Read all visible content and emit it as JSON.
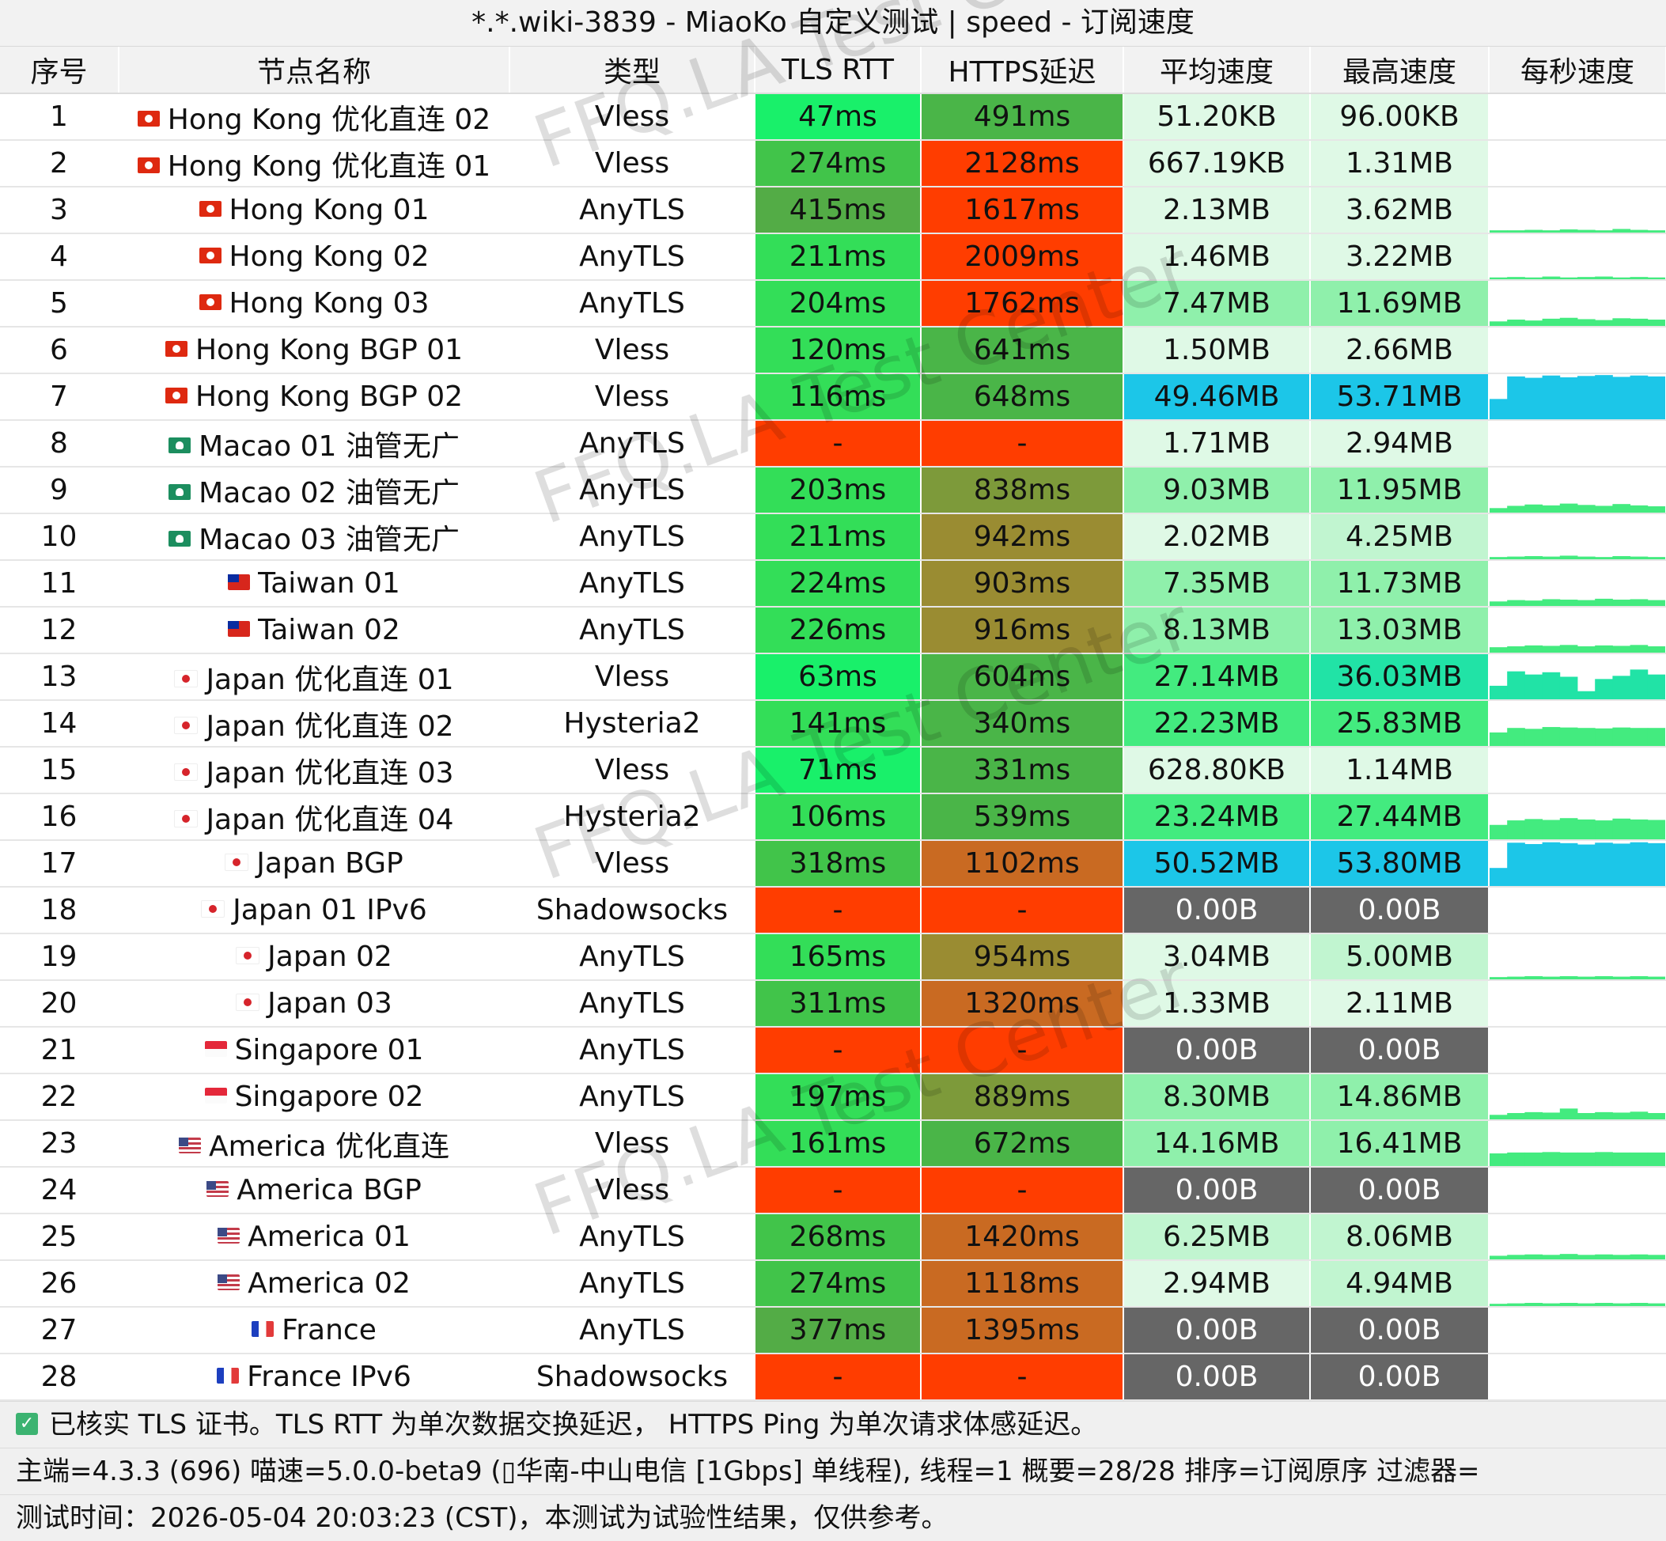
{
  "title": "*.*.wiki-3839 - MiaoKo 自定义测试 | speed - 订阅速度",
  "headers": [
    "序号",
    "节点名称",
    "类型",
    "TLS RTT",
    "HTTPS延迟",
    "平均速度",
    "最高速度",
    "每秒速度"
  ],
  "colors": {
    "tls_fast": "#19f06a",
    "tls_good": "#33de58",
    "tls_ok": "#41c44a",
    "tls_slow": "#53ac46",
    "fail": "#ff3d00",
    "https_good": "#4ab548",
    "https_mid": "#7d9a3a",
    "https_olive": "#9a8c32",
    "https_orange": "#c96a22",
    "https_bad": "#ff3d00",
    "speed_light": "#dff9e6",
    "speed_pale": "#c1f5d0",
    "speed_mid": "#8ff0ab",
    "speed_bright": "#43eb7f",
    "speed_teal": "#21e3a6",
    "speed_cyan": "#1cc6e8",
    "zero": "#666666"
  },
  "rows": [
    {
      "idx": "1",
      "flag": "hk",
      "name": "Hong Kong 优化直连 02",
      "type": "Vless",
      "tls": "47ms",
      "tls_color": "#19f06a",
      "https": "491ms",
      "https_color": "#4ab548",
      "avg": "51.20KB",
      "avg_color": "#dff9e6",
      "max": "96.00KB",
      "max_color": "#dff9e6",
      "spark": []
    },
    {
      "idx": "2",
      "flag": "hk",
      "name": "Hong Kong 优化直连 01",
      "type": "Vless",
      "tls": "274ms",
      "tls_color": "#41c44a",
      "https": "2128ms",
      "https_color": "#ff3d00",
      "avg": "667.19KB",
      "avg_color": "#dff9e6",
      "max": "1.31MB",
      "max_color": "#dff9e6",
      "spark": []
    },
    {
      "idx": "3",
      "flag": "hk",
      "name": "Hong Kong 01",
      "type": "AnyTLS",
      "tls": "415ms",
      "tls_color": "#53ac46",
      "https": "1617ms",
      "https_color": "#ff3d00",
      "avg": "2.13MB",
      "avg_color": "#dff9e6",
      "max": "3.62MB",
      "max_color": "#dff9e6",
      "spark": [
        0.05,
        0.05,
        0.06,
        0.05,
        0.07,
        0.06,
        0.05,
        0.08,
        0.06,
        0.05
      ]
    },
    {
      "idx": "4",
      "flag": "hk",
      "name": "Hong Kong 02",
      "type": "AnyTLS",
      "tls": "211ms",
      "tls_color": "#33de58",
      "https": "2009ms",
      "https_color": "#ff3d00",
      "avg": "1.46MB",
      "avg_color": "#dff9e6",
      "max": "3.22MB",
      "max_color": "#dff9e6",
      "spark": [
        0.04,
        0.05,
        0.04,
        0.06,
        0.04,
        0.05,
        0.06,
        0.04,
        0.05,
        0.04
      ]
    },
    {
      "idx": "5",
      "flag": "hk",
      "name": "Hong Kong 03",
      "type": "AnyTLS",
      "tls": "204ms",
      "tls_color": "#33de58",
      "https": "1762ms",
      "https_color": "#ff3d00",
      "avg": "7.47MB",
      "avg_color": "#8ff0ab",
      "max": "11.69MB",
      "max_color": "#8ff0ab",
      "spark": [
        0.1,
        0.14,
        0.12,
        0.16,
        0.18,
        0.15,
        0.13,
        0.17,
        0.16,
        0.14
      ]
    },
    {
      "idx": "6",
      "flag": "hk",
      "name": "Hong Kong BGP 01",
      "type": "Vless",
      "tls": "120ms",
      "tls_color": "#33de58",
      "https": "641ms",
      "https_color": "#4ab548",
      "avg": "1.50MB",
      "avg_color": "#dff9e6",
      "max": "2.66MB",
      "max_color": "#dff9e6",
      "spark": []
    },
    {
      "idx": "7",
      "flag": "hk",
      "name": "Hong Kong BGP 02",
      "type": "Vless",
      "tls": "116ms",
      "tls_color": "#33de58",
      "https": "648ms",
      "https_color": "#4ab548",
      "avg": "49.46MB",
      "avg_color": "#1cc6e8",
      "max": "53.71MB",
      "max_color": "#1cc6e8",
      "spark": [
        0.45,
        0.95,
        0.92,
        0.97,
        0.93,
        0.96,
        0.98,
        0.94,
        0.97,
        0.95
      ]
    },
    {
      "idx": "8",
      "flag": "mo",
      "name": "Macao 01 油管无广",
      "type": "AnyTLS",
      "tls": "-",
      "tls_color": "#ff3d00",
      "https": "-",
      "https_color": "#ff3d00",
      "avg": "1.71MB",
      "avg_color": "#dff9e6",
      "max": "2.94MB",
      "max_color": "#dff9e6",
      "spark": []
    },
    {
      "idx": "9",
      "flag": "mo",
      "name": "Macao 02 油管无广",
      "type": "AnyTLS",
      "tls": "203ms",
      "tls_color": "#33de58",
      "https": "838ms",
      "https_color": "#7d9a3a",
      "avg": "9.03MB",
      "avg_color": "#8ff0ab",
      "max": "11.95MB",
      "max_color": "#8ff0ab",
      "spark": [
        0.1,
        0.15,
        0.18,
        0.16,
        0.2,
        0.17,
        0.15,
        0.19,
        0.16,
        0.14
      ]
    },
    {
      "idx": "10",
      "flag": "mo",
      "name": "Macao 03 油管无广",
      "type": "AnyTLS",
      "tls": "211ms",
      "tls_color": "#33de58",
      "https": "942ms",
      "https_color": "#9a8c32",
      "avg": "2.02MB",
      "avg_color": "#dff9e6",
      "max": "4.25MB",
      "max_color": "#c1f5d0",
      "spark": [
        0.05,
        0.06,
        0.07,
        0.06,
        0.08,
        0.06,
        0.05,
        0.07,
        0.06,
        0.05
      ]
    },
    {
      "idx": "11",
      "flag": "tw",
      "name": "Taiwan 01",
      "type": "AnyTLS",
      "tls": "224ms",
      "tls_color": "#33de58",
      "https": "903ms",
      "https_color": "#9a8c32",
      "avg": "7.35MB",
      "avg_color": "#8ff0ab",
      "max": "11.73MB",
      "max_color": "#8ff0ab",
      "spark": [
        0.1,
        0.13,
        0.12,
        0.15,
        0.14,
        0.13,
        0.16,
        0.14,
        0.15,
        0.13
      ]
    },
    {
      "idx": "12",
      "flag": "tw",
      "name": "Taiwan 02",
      "type": "AnyTLS",
      "tls": "226ms",
      "tls_color": "#33de58",
      "https": "916ms",
      "https_color": "#9a8c32",
      "avg": "8.13MB",
      "avg_color": "#8ff0ab",
      "max": "13.03MB",
      "max_color": "#8ff0ab",
      "spark": [
        0.12,
        0.14,
        0.16,
        0.15,
        0.17,
        0.14,
        0.16,
        0.15,
        0.17,
        0.14
      ]
    },
    {
      "idx": "13",
      "flag": "jp",
      "name": "Japan 优化直连 01",
      "type": "Vless",
      "tls": "63ms",
      "tls_color": "#19f06a",
      "https": "604ms",
      "https_color": "#4ab548",
      "avg": "27.14MB",
      "avg_color": "#43eb7f",
      "max": "36.03MB",
      "max_color": "#21e3a6",
      "spark": [
        0.3,
        0.62,
        0.55,
        0.6,
        0.5,
        0.18,
        0.45,
        0.52,
        0.66,
        0.55
      ]
    },
    {
      "idx": "14",
      "flag": "jp",
      "name": "Japan 优化直连 02",
      "type": "Hysteria2",
      "tls": "141ms",
      "tls_color": "#33de58",
      "https": "340ms",
      "https_color": "#4ab548",
      "avg": "22.23MB",
      "avg_color": "#43eb7f",
      "max": "25.83MB",
      "max_color": "#43eb7f",
      "spark": [
        0.3,
        0.4,
        0.38,
        0.42,
        0.41,
        0.4,
        0.39,
        0.41,
        0.4,
        0.4
      ]
    },
    {
      "idx": "15",
      "flag": "jp",
      "name": "Japan 优化直连 03",
      "type": "Vless",
      "tls": "71ms",
      "tls_color": "#19f06a",
      "https": "331ms",
      "https_color": "#4ab548",
      "avg": "628.80KB",
      "avg_color": "#dff9e6",
      "max": "1.14MB",
      "max_color": "#dff9e6",
      "spark": []
    },
    {
      "idx": "16",
      "flag": "jp",
      "name": "Japan 优化直连 04",
      "type": "Hysteria2",
      "tls": "106ms",
      "tls_color": "#33de58",
      "https": "539ms",
      "https_color": "#4ab548",
      "avg": "23.24MB",
      "avg_color": "#43eb7f",
      "max": "27.44MB",
      "max_color": "#43eb7f",
      "spark": [
        0.32,
        0.42,
        0.45,
        0.43,
        0.47,
        0.44,
        0.42,
        0.46,
        0.44,
        0.43
      ]
    },
    {
      "idx": "17",
      "flag": "jp",
      "name": "Japan BGP",
      "type": "Vless",
      "tls": "318ms",
      "tls_color": "#41c44a",
      "https": "1102ms",
      "https_color": "#c96a22",
      "avg": "50.52MB",
      "avg_color": "#1cc6e8",
      "max": "53.80MB",
      "max_color": "#1cc6e8",
      "spark": [
        0.4,
        0.96,
        0.93,
        0.97,
        0.95,
        0.92,
        0.96,
        0.94,
        0.97,
        0.95
      ]
    },
    {
      "idx": "18",
      "flag": "jp",
      "name": "Japan 01 IPv6",
      "type": "Shadowsocks",
      "tls": "-",
      "tls_color": "#ff3d00",
      "https": "-",
      "https_color": "#ff3d00",
      "avg": "0.00B",
      "avg_color": "#666666",
      "max": "0.00B",
      "max_color": "#666666",
      "spark": []
    },
    {
      "idx": "19",
      "flag": "jp",
      "name": "Japan 02",
      "type": "AnyTLS",
      "tls": "165ms",
      "tls_color": "#33de58",
      "https": "954ms",
      "https_color": "#9a8c32",
      "avg": "3.04MB",
      "avg_color": "#dff9e6",
      "max": "5.00MB",
      "max_color": "#c1f5d0",
      "spark": [
        0.05,
        0.06,
        0.07,
        0.06,
        0.07,
        0.06,
        0.07,
        0.06,
        0.07,
        0.06
      ]
    },
    {
      "idx": "20",
      "flag": "jp",
      "name": "Japan 03",
      "type": "AnyTLS",
      "tls": "311ms",
      "tls_color": "#41c44a",
      "https": "1320ms",
      "https_color": "#c96a22",
      "avg": "1.33MB",
      "avg_color": "#dff9e6",
      "max": "2.11MB",
      "max_color": "#dff9e6",
      "spark": []
    },
    {
      "idx": "21",
      "flag": "sg",
      "name": "Singapore 01",
      "type": "AnyTLS",
      "tls": "-",
      "tls_color": "#ff3d00",
      "https": "-",
      "https_color": "#ff3d00",
      "avg": "0.00B",
      "avg_color": "#666666",
      "max": "0.00B",
      "max_color": "#666666",
      "spark": []
    },
    {
      "idx": "22",
      "flag": "sg",
      "name": "Singapore 02",
      "type": "AnyTLS",
      "tls": "197ms",
      "tls_color": "#33de58",
      "https": "889ms",
      "https_color": "#7d9a3a",
      "avg": "8.30MB",
      "avg_color": "#8ff0ab",
      "max": "14.86MB",
      "max_color": "#8ff0ab",
      "spark": [
        0.1,
        0.14,
        0.16,
        0.15,
        0.24,
        0.14,
        0.16,
        0.15,
        0.17,
        0.14
      ]
    },
    {
      "idx": "23",
      "flag": "us",
      "name": "America 优化直连",
      "type": "Vless",
      "tls": "161ms",
      "tls_color": "#33de58",
      "https": "672ms",
      "https_color": "#4ab548",
      "avg": "14.16MB",
      "avg_color": "#8ff0ab",
      "max": "16.41MB",
      "max_color": "#8ff0ab",
      "spark": [
        0.28,
        0.3,
        0.3,
        0.31,
        0.3,
        0.3,
        0.31,
        0.3,
        0.3,
        0.3
      ]
    },
    {
      "idx": "24",
      "flag": "us",
      "name": "America BGP",
      "type": "Vless",
      "tls": "-",
      "tls_color": "#ff3d00",
      "https": "-",
      "https_color": "#ff3d00",
      "avg": "0.00B",
      "avg_color": "#666666",
      "max": "0.00B",
      "max_color": "#666666",
      "spark": []
    },
    {
      "idx": "25",
      "flag": "us",
      "name": "America 01",
      "type": "AnyTLS",
      "tls": "268ms",
      "tls_color": "#41c44a",
      "https": "1420ms",
      "https_color": "#c96a22",
      "avg": "6.25MB",
      "avg_color": "#c1f5d0",
      "max": "8.06MB",
      "max_color": "#c1f5d0",
      "spark": [
        0.08,
        0.1,
        0.11,
        0.1,
        0.12,
        0.1,
        0.11,
        0.1,
        0.11,
        0.1
      ]
    },
    {
      "idx": "26",
      "flag": "us",
      "name": "America 02",
      "type": "AnyTLS",
      "tls": "274ms",
      "tls_color": "#41c44a",
      "https": "1118ms",
      "https_color": "#c96a22",
      "avg": "2.94MB",
      "avg_color": "#dff9e6",
      "max": "4.94MB",
      "max_color": "#c1f5d0",
      "spark": [
        0.05,
        0.06,
        0.07,
        0.06,
        0.07,
        0.06,
        0.07,
        0.06,
        0.07,
        0.06
      ]
    },
    {
      "idx": "27",
      "flag": "fr",
      "name": "France",
      "type": "AnyTLS",
      "tls": "377ms",
      "tls_color": "#53ac46",
      "https": "1395ms",
      "https_color": "#c96a22",
      "avg": "0.00B",
      "avg_color": "#666666",
      "max": "0.00B",
      "max_color": "#666666",
      "spark": []
    },
    {
      "idx": "28",
      "flag": "fr",
      "name": "France IPv6",
      "type": "Shadowsocks",
      "tls": "-",
      "tls_color": "#ff3d00",
      "https": "-",
      "https_color": "#ff3d00",
      "avg": "0.00B",
      "avg_color": "#666666",
      "max": "0.00B",
      "max_color": "#666666",
      "spark": []
    }
  ],
  "footer": {
    "icon": "check-icon",
    "note": "已核实 TLS 证书。TLS RTT 为单次数据交换延迟， HTTPS Ping 为单次请求体感延迟。",
    "info": "主端=4.3.3 (696) 喵速=5.0.0-beta9 (▯华南-中山电信 [1Gbps] 单线程), 线程=1 概要=28/28 排序=订阅原序 过滤器=",
    "time": "测试时间：2026-05-04 20:03:23 (CST)，本测试为试验性结果，仅供参考。"
  },
  "watermark": [
    "FFQ.LA Test Center",
    "FFQ.LA Test Center",
    "FFQ.LA Test Center",
    "FFQ.LA Test Center"
  ]
}
